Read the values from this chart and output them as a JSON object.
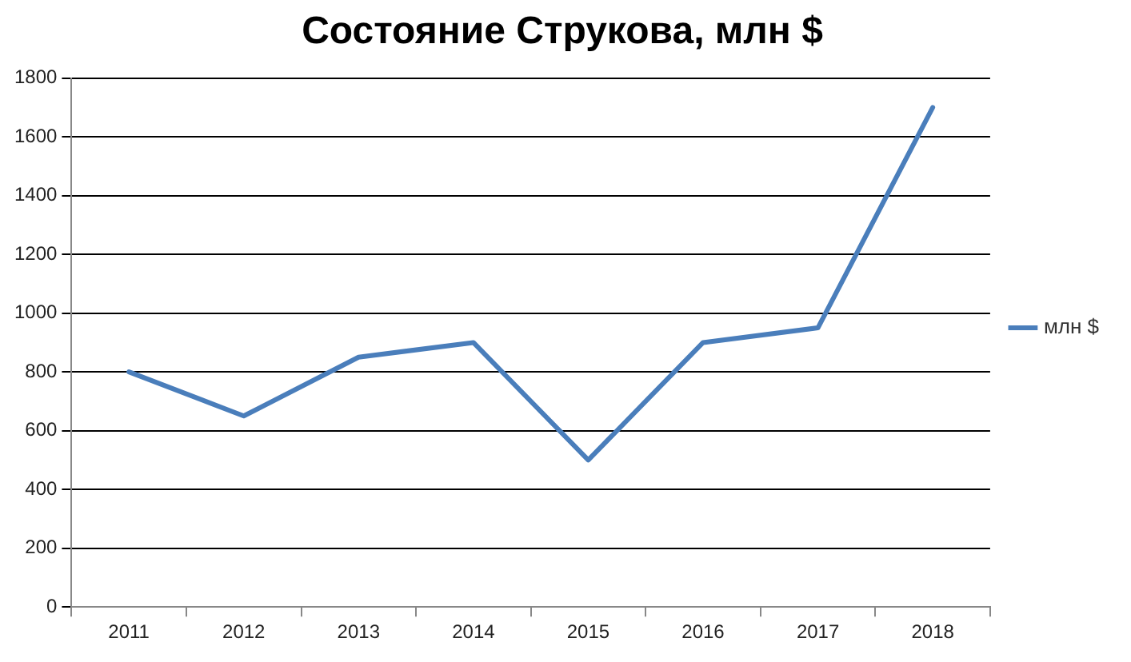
{
  "chart_data": {
    "type": "line",
    "title": "Состояние Струкова, млн $",
    "categories": [
      "2011",
      "2012",
      "2013",
      "2014",
      "2015",
      "2016",
      "2017",
      "2018"
    ],
    "series": [
      {
        "name": "млн $",
        "color": "#4a7ebb",
        "values": [
          800,
          650,
          850,
          900,
          500,
          900,
          950,
          1700
        ]
      }
    ],
    "ylim": [
      0,
      1800
    ],
    "yticks": [
      0,
      200,
      400,
      600,
      800,
      1000,
      1200,
      1400,
      1600,
      1800
    ],
    "grid": "y",
    "legend": "right",
    "marker": "none",
    "line_style": "solid"
  }
}
